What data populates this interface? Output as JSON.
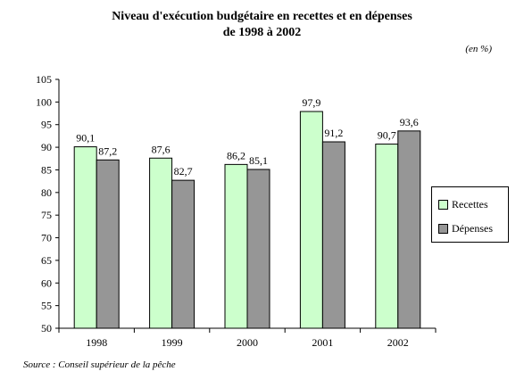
{
  "title_line1": "Niveau d'exécution budgétaire en recettes et en dépenses",
  "title_line2": "de 1998 à 2002",
  "unit_label": "(en %)",
  "source": "Source : Conseil supérieur de la pêche",
  "colors": {
    "recettes": "#ccffcc",
    "depenses": "#969696",
    "axis": "#000000"
  },
  "chart_data": {
    "type": "bar",
    "title": "Niveau d'exécution budgétaire en recettes et en dépenses de 1998 à 2002",
    "unit": "(en %)",
    "categories": [
      "1998",
      "1999",
      "2000",
      "2001",
      "2002"
    ],
    "series": [
      {
        "name": "Recettes",
        "values": [
          90.1,
          87.6,
          86.2,
          97.9,
          90.7
        ],
        "labels": [
          "90,1",
          "87,6",
          "86,2",
          "97,9",
          "90,7"
        ]
      },
      {
        "name": "Dépenses",
        "values": [
          87.2,
          82.7,
          85.1,
          91.2,
          93.6
        ],
        "labels": [
          "87,2",
          "82,7",
          "85,1",
          "91,2",
          "93,6"
        ]
      }
    ],
    "ylim": [
      50,
      105
    ],
    "yticks": [
      "50",
      "55",
      "60",
      "65",
      "70",
      "75",
      "80",
      "85",
      "90",
      "95",
      "100",
      "105"
    ],
    "grid": false,
    "legend_position": "right"
  }
}
